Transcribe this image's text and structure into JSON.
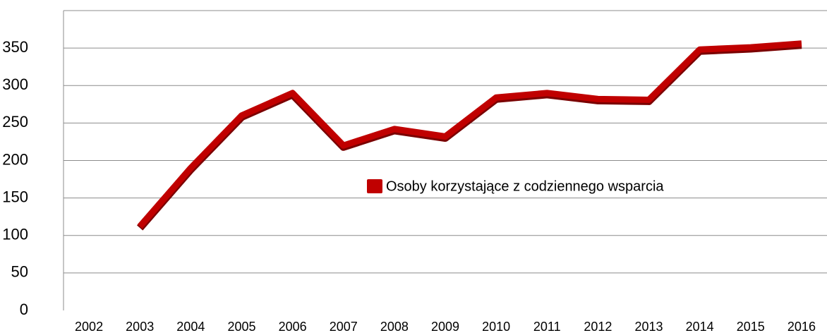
{
  "chart_data": {
    "type": "line",
    "categories": [
      "2002",
      "2003",
      "2004",
      "2005",
      "2006",
      "2007",
      "2008",
      "2009",
      "2010",
      "2011",
      "2012",
      "2013",
      "2014",
      "2015",
      "2016"
    ],
    "series": [
      {
        "name": "Osoby korzystające z codziennego wsparcia",
        "color": "#c00000",
        "values": [
          null,
          112,
          190,
          260,
          290,
          220,
          242,
          232,
          284,
          290,
          282,
          281,
          348,
          351,
          356
        ]
      }
    ],
    "ylim": [
      0,
      400
    ],
    "yticks": [
      0,
      50,
      100,
      150,
      200,
      250,
      300,
      350
    ],
    "grid": true
  }
}
